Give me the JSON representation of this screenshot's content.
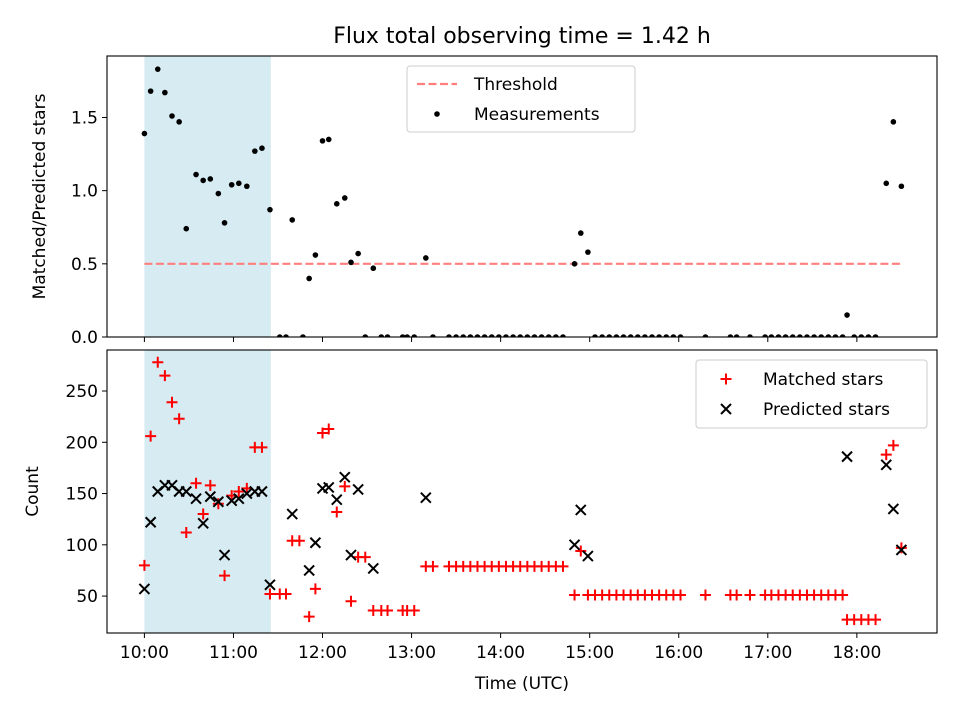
{
  "chart_data": [
    {
      "type": "scatter",
      "title": "Flux total observing time = 1.42 h",
      "ylabel": "Matched/Predicted stars",
      "xlabel": "",
      "ylim": [
        0,
        1.92
      ],
      "yticks": [
        "0.0",
        "0.5",
        "1.0",
        "1.5"
      ],
      "ytick_values": [
        0,
        0.5,
        1.0,
        1.5
      ],
      "xlim_hours": [
        9.58,
        18.9
      ],
      "xtick_values_hours": [
        10,
        11,
        12,
        13,
        14,
        15,
        16,
        17,
        18
      ],
      "shaded_span_hours": [
        10.0,
        11.42
      ],
      "threshold": {
        "name": "Threshold",
        "value": 0.5,
        "x_range_hours": [
          10.0,
          18.5
        ],
        "color": "#ff7f7f"
      },
      "legend": "upper-center",
      "series": [
        {
          "name": "Measurements",
          "color": "#000000",
          "points": [
            [
              10.0,
              1.39
            ],
            [
              10.07,
              1.68
            ],
            [
              10.15,
              1.83
            ],
            [
              10.23,
              1.67
            ],
            [
              10.31,
              1.51
            ],
            [
              10.39,
              1.47
            ],
            [
              10.47,
              0.74
            ],
            [
              10.58,
              1.11
            ],
            [
              10.66,
              1.07
            ],
            [
              10.74,
              1.08
            ],
            [
              10.83,
              0.98
            ],
            [
              10.9,
              0.78
            ],
            [
              10.98,
              1.04
            ],
            [
              11.06,
              1.05
            ],
            [
              11.15,
              1.03
            ],
            [
              11.24,
              1.27
            ],
            [
              11.32,
              1.29
            ],
            [
              11.41,
              0.87
            ],
            [
              11.52,
              0
            ],
            [
              11.59,
              0
            ],
            [
              11.66,
              0.8
            ],
            [
              11.78,
              0
            ],
            [
              11.85,
              0.4
            ],
            [
              11.92,
              0.56
            ],
            [
              12.0,
              1.34
            ],
            [
              12.07,
              1.35
            ],
            [
              12.16,
              0.91
            ],
            [
              12.25,
              0.95
            ],
            [
              12.32,
              0.51
            ],
            [
              12.4,
              0.57
            ],
            [
              12.48,
              0
            ],
            [
              12.57,
              0.47
            ],
            [
              12.66,
              0
            ],
            [
              12.73,
              0
            ],
            [
              12.9,
              0
            ],
            [
              12.95,
              0
            ],
            [
              13.03,
              0
            ],
            [
              13.16,
              0.54
            ],
            [
              13.24,
              0
            ],
            [
              13.42,
              0
            ],
            [
              13.5,
              0
            ],
            [
              13.58,
              0
            ],
            [
              13.66,
              0
            ],
            [
              13.74,
              0
            ],
            [
              13.82,
              0
            ],
            [
              13.9,
              0
            ],
            [
              13.98,
              0
            ],
            [
              14.06,
              0
            ],
            [
              14.14,
              0
            ],
            [
              14.22,
              0
            ],
            [
              14.3,
              0
            ],
            [
              14.38,
              0
            ],
            [
              14.46,
              0
            ],
            [
              14.54,
              0
            ],
            [
              14.62,
              0
            ],
            [
              14.7,
              0
            ],
            [
              14.83,
              0.5
            ],
            [
              14.9,
              0.71
            ],
            [
              14.98,
              0.58
            ],
            [
              15.06,
              0
            ],
            [
              15.14,
              0
            ],
            [
              15.22,
              0
            ],
            [
              15.3,
              0
            ],
            [
              15.38,
              0
            ],
            [
              15.46,
              0
            ],
            [
              15.54,
              0
            ],
            [
              15.62,
              0
            ],
            [
              15.7,
              0
            ],
            [
              15.78,
              0
            ],
            [
              15.86,
              0
            ],
            [
              15.94,
              0
            ],
            [
              16.02,
              0
            ],
            [
              16.3,
              0
            ],
            [
              16.58,
              0
            ],
            [
              16.65,
              0
            ],
            [
              16.8,
              0
            ],
            [
              16.97,
              0
            ],
            [
              17.04,
              0
            ],
            [
              17.12,
              0
            ],
            [
              17.2,
              0
            ],
            [
              17.28,
              0
            ],
            [
              17.36,
              0
            ],
            [
              17.44,
              0
            ],
            [
              17.52,
              0
            ],
            [
              17.6,
              0
            ],
            [
              17.68,
              0
            ],
            [
              17.76,
              0
            ],
            [
              17.84,
              0
            ],
            [
              17.89,
              0.15
            ],
            [
              17.97,
              0
            ],
            [
              18.05,
              0
            ],
            [
              18.13,
              0
            ],
            [
              18.21,
              0
            ],
            [
              18.33,
              1.05
            ],
            [
              18.41,
              1.47
            ],
            [
              18.5,
              1.03
            ]
          ]
        }
      ]
    },
    {
      "type": "scatter",
      "title": "",
      "xlabel": "Time (UTC)",
      "ylabel": "Count",
      "ylim": [
        14,
        290
      ],
      "yticks": [
        "50",
        "100",
        "150",
        "200",
        "250"
      ],
      "ytick_values": [
        50,
        100,
        150,
        200,
        250
      ],
      "xlim_hours": [
        9.58,
        18.9
      ],
      "xtick_values_hours": [
        10,
        11,
        12,
        13,
        14,
        15,
        16,
        17,
        18
      ],
      "xtick_labels": [
        "10:00",
        "11:00",
        "12:00",
        "13:00",
        "14:00",
        "15:00",
        "16:00",
        "17:00",
        "18:00"
      ],
      "shaded_span_hours": [
        10.0,
        11.42
      ],
      "legend": "top-right",
      "series": [
        {
          "name": "Matched stars",
          "marker": "plus",
          "color": "#ff0000",
          "points": [
            [
              10.0,
              80
            ],
            [
              10.07,
              206
            ],
            [
              10.15,
              278
            ],
            [
              10.23,
              265
            ],
            [
              10.31,
              239
            ],
            [
              10.39,
              223
            ],
            [
              10.47,
              112
            ],
            [
              10.58,
              160
            ],
            [
              10.66,
              130
            ],
            [
              10.74,
              158
            ],
            [
              10.83,
              140
            ],
            [
              10.9,
              70
            ],
            [
              10.98,
              148
            ],
            [
              11.06,
              152
            ],
            [
              11.15,
              155
            ],
            [
              11.24,
              195
            ],
            [
              11.32,
              195
            ],
            [
              11.41,
              52
            ],
            [
              11.52,
              52
            ],
            [
              11.59,
              52
            ],
            [
              11.66,
              104
            ],
            [
              11.74,
              104
            ],
            [
              11.85,
              30
            ],
            [
              11.92,
              57
            ],
            [
              12.0,
              209
            ],
            [
              12.07,
              213
            ],
            [
              12.16,
              132
            ],
            [
              12.25,
              157
            ],
            [
              12.32,
              45
            ],
            [
              12.4,
              88
            ],
            [
              12.48,
              88
            ],
            [
              12.57,
              36
            ],
            [
              12.66,
              36
            ],
            [
              12.73,
              36
            ],
            [
              12.9,
              36
            ],
            [
              12.95,
              36
            ],
            [
              13.03,
              36
            ],
            [
              13.16,
              79
            ],
            [
              13.24,
              79
            ],
            [
              13.42,
              79
            ],
            [
              13.5,
              79
            ],
            [
              13.58,
              79
            ],
            [
              13.66,
              79
            ],
            [
              13.74,
              79
            ],
            [
              13.82,
              79
            ],
            [
              13.9,
              79
            ],
            [
              13.98,
              79
            ],
            [
              14.06,
              79
            ],
            [
              14.14,
              79
            ],
            [
              14.22,
              79
            ],
            [
              14.3,
              79
            ],
            [
              14.38,
              79
            ],
            [
              14.46,
              79
            ],
            [
              14.54,
              79
            ],
            [
              14.62,
              79
            ],
            [
              14.7,
              79
            ],
            [
              14.83,
              51
            ],
            [
              14.9,
              94
            ],
            [
              14.98,
              51
            ],
            [
              15.06,
              51
            ],
            [
              15.14,
              51
            ],
            [
              15.22,
              51
            ],
            [
              15.3,
              51
            ],
            [
              15.38,
              51
            ],
            [
              15.46,
              51
            ],
            [
              15.54,
              51
            ],
            [
              15.62,
              51
            ],
            [
              15.7,
              51
            ],
            [
              15.78,
              51
            ],
            [
              15.86,
              51
            ],
            [
              15.94,
              51
            ],
            [
              16.02,
              51
            ],
            [
              16.3,
              51
            ],
            [
              16.58,
              51
            ],
            [
              16.65,
              51
            ],
            [
              16.8,
              51
            ],
            [
              16.97,
              51
            ],
            [
              17.04,
              51
            ],
            [
              17.12,
              51
            ],
            [
              17.2,
              51
            ],
            [
              17.28,
              51
            ],
            [
              17.36,
              51
            ],
            [
              17.44,
              51
            ],
            [
              17.52,
              51
            ],
            [
              17.6,
              51
            ],
            [
              17.68,
              51
            ],
            [
              17.76,
              51
            ],
            [
              17.84,
              51
            ],
            [
              17.89,
              27
            ],
            [
              17.97,
              27
            ],
            [
              18.05,
              27
            ],
            [
              18.13,
              27
            ],
            [
              18.21,
              27
            ],
            [
              18.33,
              188
            ],
            [
              18.41,
              197
            ],
            [
              18.5,
              97
            ]
          ]
        },
        {
          "name": "Predicted stars",
          "marker": "x",
          "color": "#000000",
          "points": [
            [
              10.0,
              57
            ],
            [
              10.07,
              122
            ],
            [
              10.15,
              152
            ],
            [
              10.23,
              158
            ],
            [
              10.31,
              158
            ],
            [
              10.39,
              152
            ],
            [
              10.47,
              152
            ],
            [
              10.58,
              145
            ],
            [
              10.66,
              121
            ],
            [
              10.74,
              147
            ],
            [
              10.83,
              142
            ],
            [
              10.9,
              90
            ],
            [
              10.98,
              143
            ],
            [
              11.06,
              145
            ],
            [
              11.15,
              150
            ],
            [
              11.24,
              152
            ],
            [
              11.32,
              152
            ],
            [
              11.41,
              61
            ],
            [
              11.66,
              130
            ],
            [
              11.85,
              75
            ],
            [
              11.92,
              102
            ],
            [
              12.0,
              155
            ],
            [
              12.07,
              156
            ],
            [
              12.16,
              144
            ],
            [
              12.25,
              166
            ],
            [
              12.32,
              90
            ],
            [
              12.4,
              154
            ],
            [
              12.57,
              77
            ],
            [
              13.16,
              146
            ],
            [
              14.83,
              100
            ],
            [
              14.9,
              134
            ],
            [
              14.98,
              89
            ],
            [
              17.89,
              186
            ],
            [
              18.33,
              178
            ],
            [
              18.41,
              135
            ],
            [
              18.5,
              95
            ]
          ]
        }
      ]
    }
  ]
}
